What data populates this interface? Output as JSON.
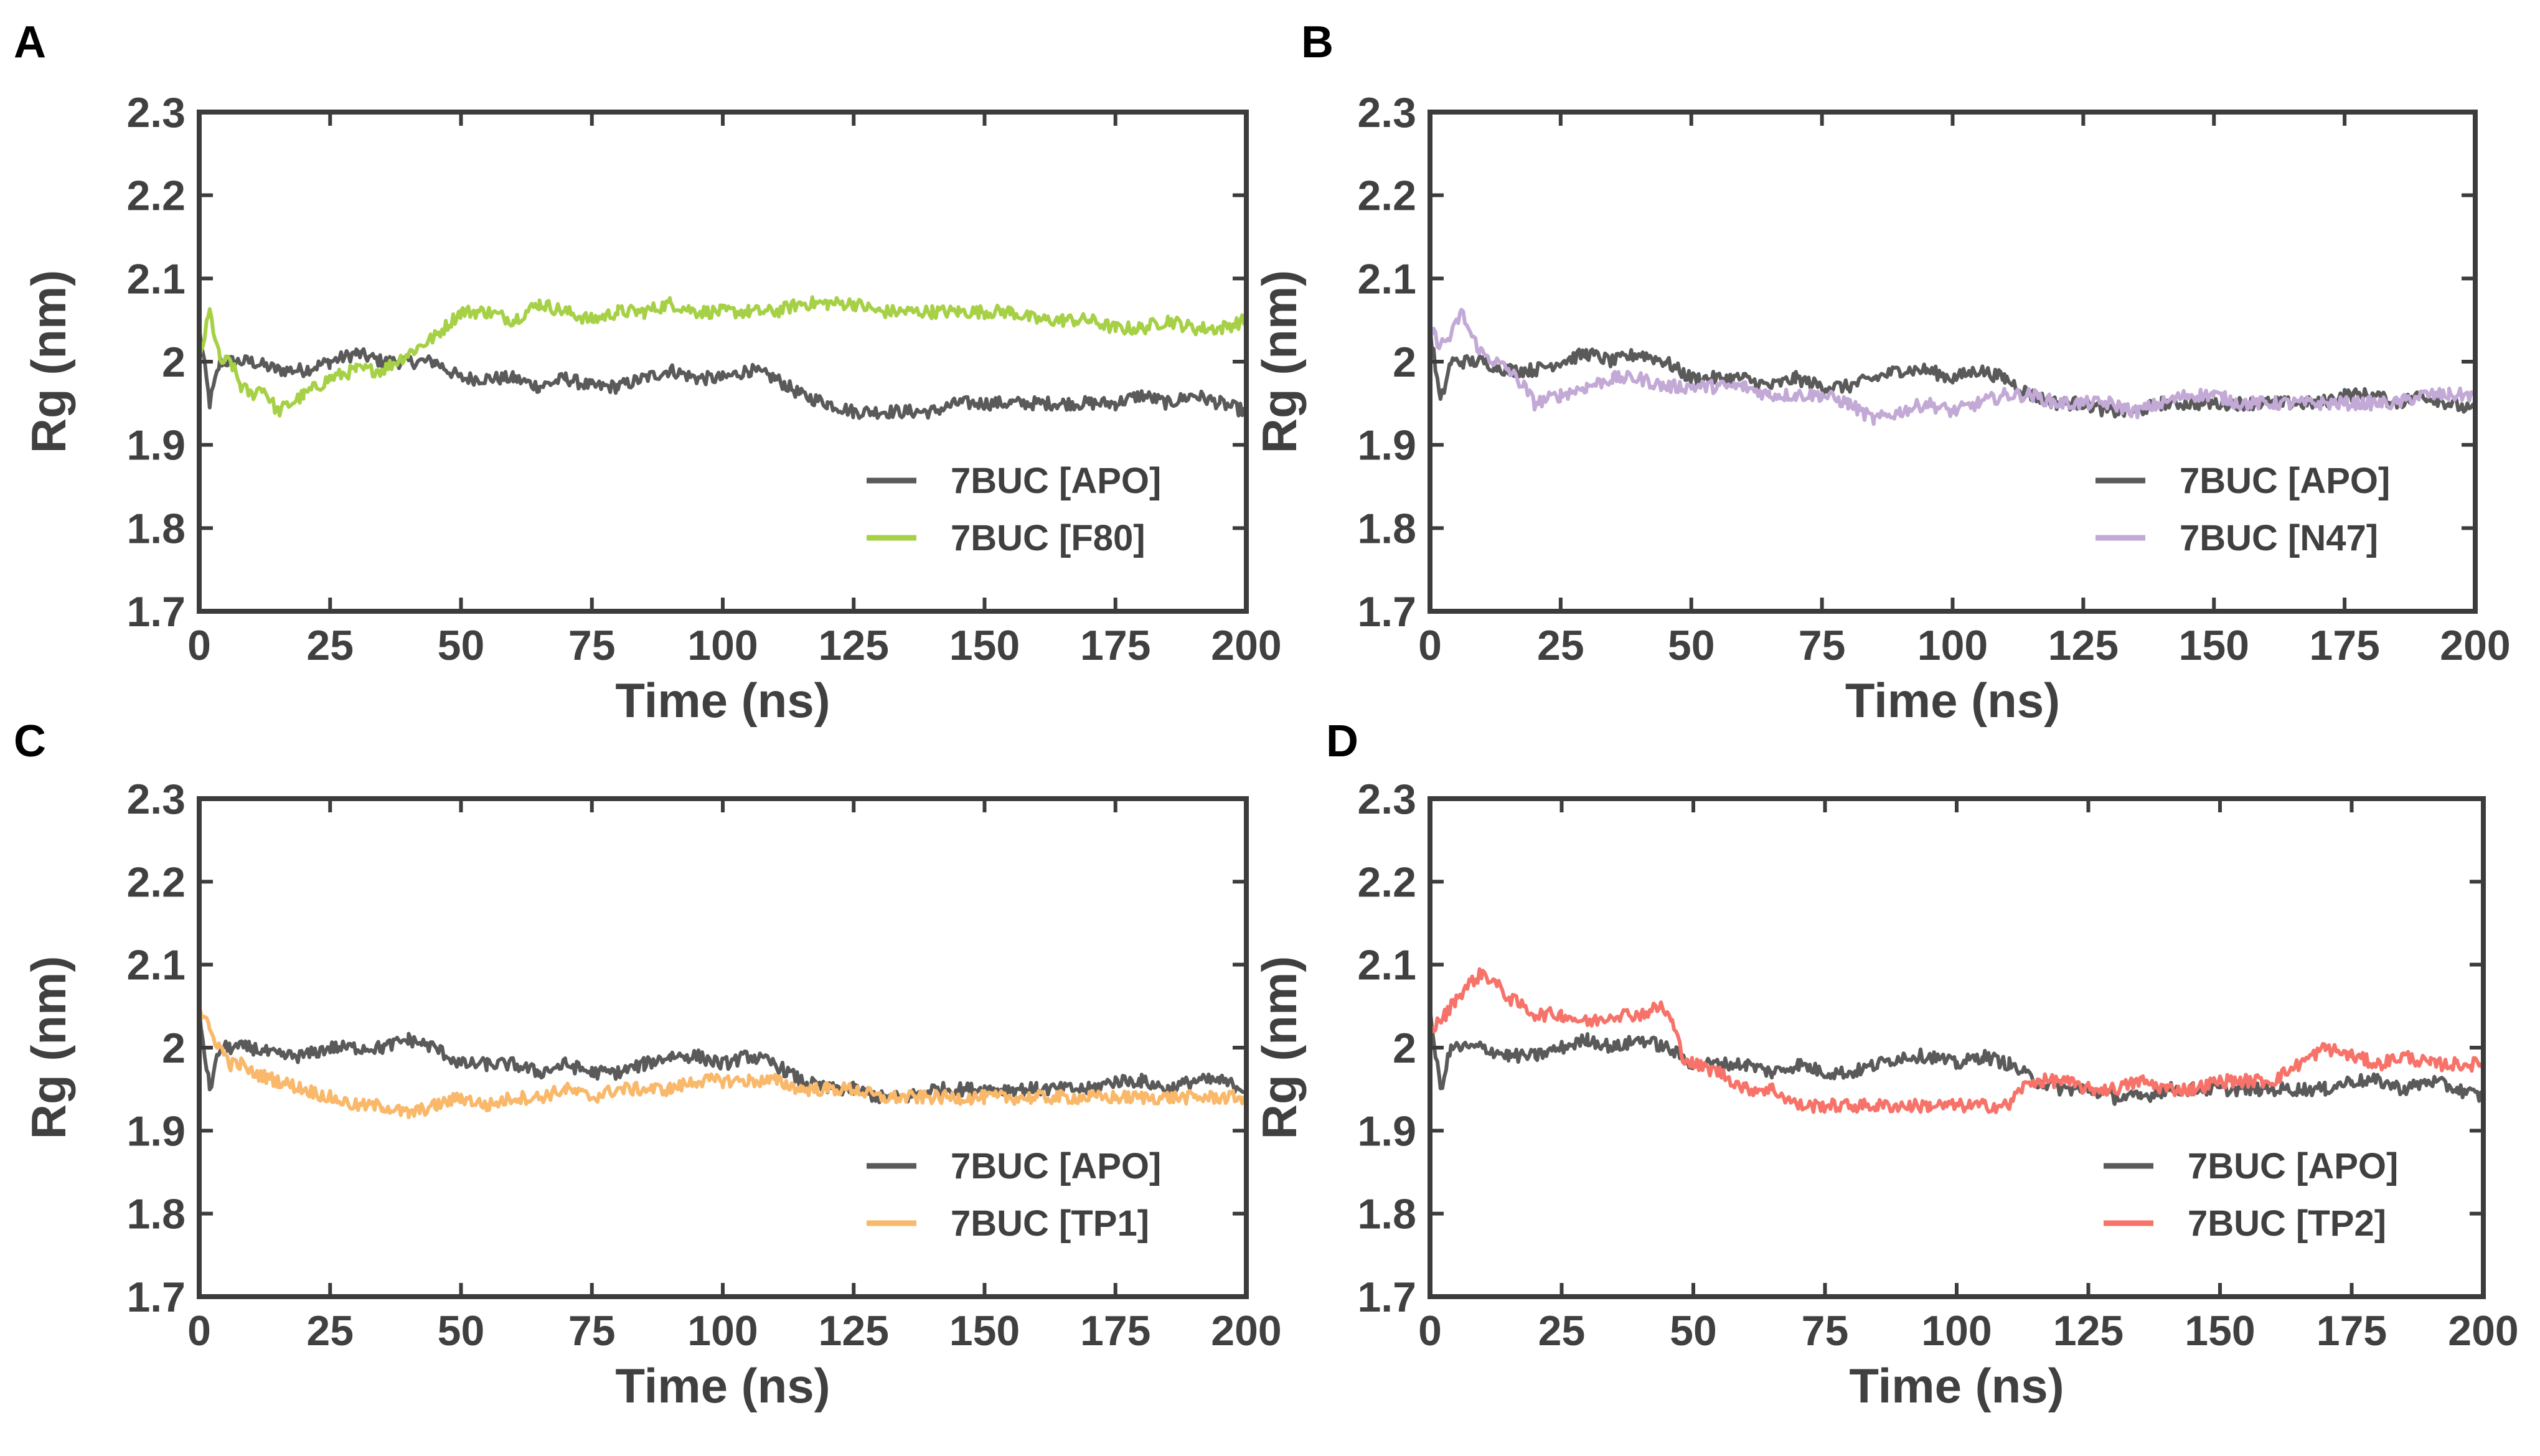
{
  "chart_data": [
    {
      "panel": "A",
      "type": "line",
      "title": "",
      "xlabel": "Time (ns)",
      "ylabel": "Rg (nm)",
      "xlim": [
        0,
        200
      ],
      "ylim": [
        1.7,
        2.3
      ],
      "xticks": [
        "0",
        "25",
        "50",
        "75",
        "100",
        "125",
        "150",
        "175",
        "200"
      ],
      "yticks": [
        "1.7",
        "1.8",
        "1.9",
        "2",
        "2.1",
        "2.2",
        "2.3"
      ],
      "legend_position": "lower-right",
      "series": [
        {
          "name": "7BUC [APO]",
          "color": "#5a5a5a",
          "x": [
            0,
            2,
            4,
            6,
            10,
            15,
            20,
            25,
            30,
            35,
            40,
            45,
            50,
            55,
            60,
            65,
            70,
            75,
            80,
            85,
            90,
            95,
            100,
            105,
            110,
            115,
            120,
            125,
            130,
            135,
            140,
            145,
            150,
            155,
            160,
            165,
            170,
            175,
            180,
            185,
            190,
            195,
            200
          ],
          "y": [
            2.04,
            1.95,
            2.0,
            2.0,
            2.0,
            1.99,
            1.99,
            2.0,
            2.01,
            2.0,
            2.0,
            2.0,
            1.98,
            1.98,
            1.98,
            1.97,
            1.98,
            1.97,
            1.97,
            1.98,
            1.99,
            1.98,
            1.98,
            1.99,
            1.98,
            1.96,
            1.95,
            1.94,
            1.94,
            1.94,
            1.94,
            1.95,
            1.95,
            1.95,
            1.95,
            1.95,
            1.95,
            1.95,
            1.96,
            1.95,
            1.96,
            1.95,
            1.94
          ]
        },
        {
          "name": "7BUC [F80]",
          "color": "#a6d146",
          "x": [
            0,
            2,
            4,
            6,
            8,
            10,
            12,
            15,
            20,
            25,
            30,
            35,
            40,
            45,
            50,
            55,
            60,
            65,
            70,
            75,
            80,
            85,
            90,
            95,
            100,
            105,
            110,
            115,
            120,
            125,
            130,
            135,
            140,
            145,
            150,
            155,
            160,
            165,
            170,
            175,
            180,
            185,
            190,
            195,
            200
          ],
          "y": [
            2.0,
            2.06,
            2.0,
            2.0,
            1.97,
            1.96,
            1.97,
            1.94,
            1.96,
            1.98,
            1.99,
            1.99,
            2.01,
            2.03,
            2.06,
            2.06,
            2.05,
            2.07,
            2.06,
            2.05,
            2.06,
            2.06,
            2.07,
            2.06,
            2.06,
            2.06,
            2.06,
            2.07,
            2.07,
            2.07,
            2.06,
            2.06,
            2.06,
            2.06,
            2.06,
            2.06,
            2.05,
            2.05,
            2.05,
            2.04,
            2.04,
            2.05,
            2.04,
            2.04,
            2.05
          ]
        }
      ]
    },
    {
      "panel": "B",
      "type": "line",
      "title": "",
      "xlabel": "Time (ns)",
      "ylabel": "Rg (nm)",
      "xlim": [
        0,
        200
      ],
      "ylim": [
        1.7,
        2.3
      ],
      "xticks": [
        "0",
        "25",
        "50",
        "75",
        "100",
        "125",
        "150",
        "175",
        "200"
      ],
      "yticks": [
        "1.7",
        "1.8",
        "1.9",
        "2",
        "2.1",
        "2.2",
        "2.3"
      ],
      "legend_position": "lower-right",
      "series": [
        {
          "name": "7BUC [APO]",
          "color": "#5a5a5a",
          "x": [
            0,
            2,
            4,
            6,
            10,
            15,
            20,
            25,
            30,
            35,
            40,
            45,
            50,
            55,
            60,
            65,
            70,
            75,
            80,
            85,
            90,
            95,
            100,
            105,
            110,
            115,
            120,
            125,
            130,
            135,
            140,
            145,
            150,
            155,
            160,
            165,
            170,
            175,
            180,
            185,
            190,
            195,
            200
          ],
          "y": [
            2.04,
            1.95,
            2.0,
            2.0,
            2.0,
            1.99,
            1.99,
            2.0,
            2.01,
            2.0,
            2.01,
            2.0,
            1.98,
            1.98,
            1.98,
            1.97,
            1.98,
            1.97,
            1.97,
            1.98,
            1.99,
            1.99,
            1.98,
            1.99,
            1.98,
            1.96,
            1.95,
            1.95,
            1.94,
            1.94,
            1.95,
            1.95,
            1.95,
            1.95,
            1.95,
            1.95,
            1.95,
            1.96,
            1.96,
            1.95,
            1.96,
            1.95,
            1.94
          ]
        },
        {
          "name": "7BUC [N47]",
          "color": "#c3a9d6",
          "x": [
            0,
            2,
            4,
            6,
            8,
            10,
            15,
            18,
            20,
            25,
            30,
            35,
            40,
            45,
            50,
            55,
            60,
            65,
            70,
            75,
            80,
            85,
            90,
            95,
            100,
            105,
            110,
            115,
            120,
            125,
            130,
            135,
            140,
            145,
            150,
            155,
            160,
            165,
            170,
            175,
            180,
            185,
            190,
            195,
            200
          ],
          "y": [
            2.04,
            2.02,
            2.03,
            2.06,
            2.03,
            2.01,
            1.99,
            1.97,
            1.95,
            1.96,
            1.97,
            1.98,
            1.98,
            1.97,
            1.97,
            1.97,
            1.97,
            1.96,
            1.96,
            1.96,
            1.95,
            1.93,
            1.94,
            1.95,
            1.94,
            1.95,
            1.96,
            1.96,
            1.95,
            1.95,
            1.95,
            1.94,
            1.95,
            1.96,
            1.96,
            1.95,
            1.95,
            1.95,
            1.95,
            1.95,
            1.95,
            1.95,
            1.96,
            1.96,
            1.96
          ]
        }
      ]
    },
    {
      "panel": "C",
      "type": "line",
      "title": "",
      "xlabel": "Time (ns)",
      "ylabel": "Rg (nm)",
      "xlim": [
        0,
        200
      ],
      "ylim": [
        1.7,
        2.3
      ],
      "xticks": [
        "0",
        "25",
        "50",
        "75",
        "100",
        "125",
        "150",
        "175",
        "200"
      ],
      "yticks": [
        "1.7",
        "1.8",
        "1.9",
        "2",
        "2.1",
        "2.2",
        "2.3"
      ],
      "legend_position": "lower-right",
      "series": [
        {
          "name": "7BUC [APO]",
          "color": "#5a5a5a",
          "x": [
            0,
            2,
            4,
            6,
            10,
            15,
            20,
            25,
            30,
            35,
            40,
            45,
            50,
            55,
            60,
            65,
            70,
            75,
            80,
            85,
            90,
            95,
            100,
            105,
            110,
            115,
            120,
            125,
            130,
            135,
            140,
            145,
            150,
            155,
            160,
            165,
            170,
            175,
            180,
            185,
            190,
            195,
            200
          ],
          "y": [
            2.04,
            1.95,
            2.0,
            2.0,
            2.0,
            1.99,
            1.99,
            2.0,
            2.0,
            2.0,
            2.01,
            2.0,
            1.98,
            1.98,
            1.98,
            1.97,
            1.98,
            1.97,
            1.97,
            1.98,
            1.99,
            1.99,
            1.98,
            1.99,
            1.98,
            1.96,
            1.95,
            1.95,
            1.94,
            1.94,
            1.95,
            1.95,
            1.95,
            1.95,
            1.95,
            1.95,
            1.95,
            1.96,
            1.96,
            1.95,
            1.96,
            1.96,
            1.95
          ]
        },
        {
          "name": "7BUC [TP1]",
          "color": "#f9b86a",
          "x": [
            0,
            2,
            4,
            6,
            8,
            10,
            15,
            20,
            25,
            30,
            35,
            40,
            45,
            50,
            55,
            60,
            65,
            70,
            75,
            80,
            85,
            90,
            95,
            100,
            105,
            110,
            115,
            120,
            125,
            130,
            135,
            140,
            145,
            150,
            155,
            160,
            165,
            170,
            175,
            180,
            185,
            190,
            195,
            200
          ],
          "y": [
            2.05,
            2.02,
            2.0,
            1.98,
            1.98,
            1.97,
            1.96,
            1.95,
            1.94,
            1.93,
            1.93,
            1.92,
            1.93,
            1.94,
            1.93,
            1.94,
            1.94,
            1.95,
            1.94,
            1.95,
            1.95,
            1.95,
            1.96,
            1.96,
            1.96,
            1.96,
            1.95,
            1.95,
            1.95,
            1.94,
            1.94,
            1.94,
            1.94,
            1.94,
            1.94,
            1.94,
            1.94,
            1.94,
            1.94,
            1.94,
            1.94,
            1.94,
            1.94,
            1.94
          ]
        }
      ]
    },
    {
      "panel": "D",
      "type": "line",
      "title": "",
      "xlabel": "Time (ns)",
      "ylabel": "Rg (nm)",
      "xlim": [
        0,
        200
      ],
      "ylim": [
        1.7,
        2.3
      ],
      "xticks": [
        "0",
        "25",
        "50",
        "75",
        "100",
        "125",
        "150",
        "175",
        "200"
      ],
      "yticks": [
        "1.7",
        "1.8",
        "1.9",
        "2",
        "2.1",
        "2.2",
        "2.3"
      ],
      "legend_position": "lower-right",
      "series": [
        {
          "name": "7BUC [APO]",
          "color": "#5a5a5a",
          "x": [
            0,
            2,
            4,
            6,
            10,
            15,
            20,
            25,
            30,
            35,
            40,
            45,
            50,
            55,
            60,
            65,
            70,
            75,
            80,
            85,
            90,
            95,
            100,
            105,
            110,
            115,
            120,
            125,
            130,
            135,
            140,
            145,
            150,
            155,
            160,
            165,
            170,
            175,
            180,
            185,
            190,
            195,
            200
          ],
          "y": [
            2.04,
            1.95,
            2.0,
            2.0,
            2.0,
            1.99,
            1.99,
            2.0,
            2.01,
            2.0,
            2.01,
            2.0,
            1.98,
            1.98,
            1.98,
            1.97,
            1.98,
            1.97,
            1.97,
            1.98,
            1.99,
            1.99,
            1.98,
            1.99,
            1.98,
            1.96,
            1.95,
            1.95,
            1.94,
            1.94,
            1.95,
            1.95,
            1.95,
            1.95,
            1.95,
            1.95,
            1.95,
            1.96,
            1.96,
            1.95,
            1.96,
            1.95,
            1.94
          ]
        },
        {
          "name": "7BUC [TP2]",
          "color": "#f7736a",
          "x": [
            0,
            3,
            5,
            8,
            10,
            12,
            15,
            20,
            25,
            30,
            35,
            40,
            44,
            46,
            48,
            50,
            55,
            60,
            65,
            70,
            75,
            80,
            85,
            90,
            95,
            100,
            105,
            110,
            112,
            115,
            120,
            125,
            130,
            135,
            140,
            145,
            150,
            155,
            160,
            165,
            170,
            175,
            180,
            185,
            190,
            195,
            200
          ],
          "y": [
            2.02,
            2.04,
            2.06,
            2.08,
            2.09,
            2.08,
            2.06,
            2.04,
            2.04,
            2.03,
            2.04,
            2.04,
            2.05,
            2.03,
            1.99,
            1.98,
            1.97,
            1.95,
            1.95,
            1.93,
            1.93,
            1.93,
            1.93,
            1.93,
            1.93,
            1.93,
            1.93,
            1.93,
            1.95,
            1.96,
            1.96,
            1.95,
            1.95,
            1.96,
            1.95,
            1.95,
            1.96,
            1.96,
            1.96,
            1.98,
            2.0,
            1.99,
            1.98,
            1.99,
            1.98,
            1.98,
            1.98
          ]
        }
      ]
    }
  ]
}
